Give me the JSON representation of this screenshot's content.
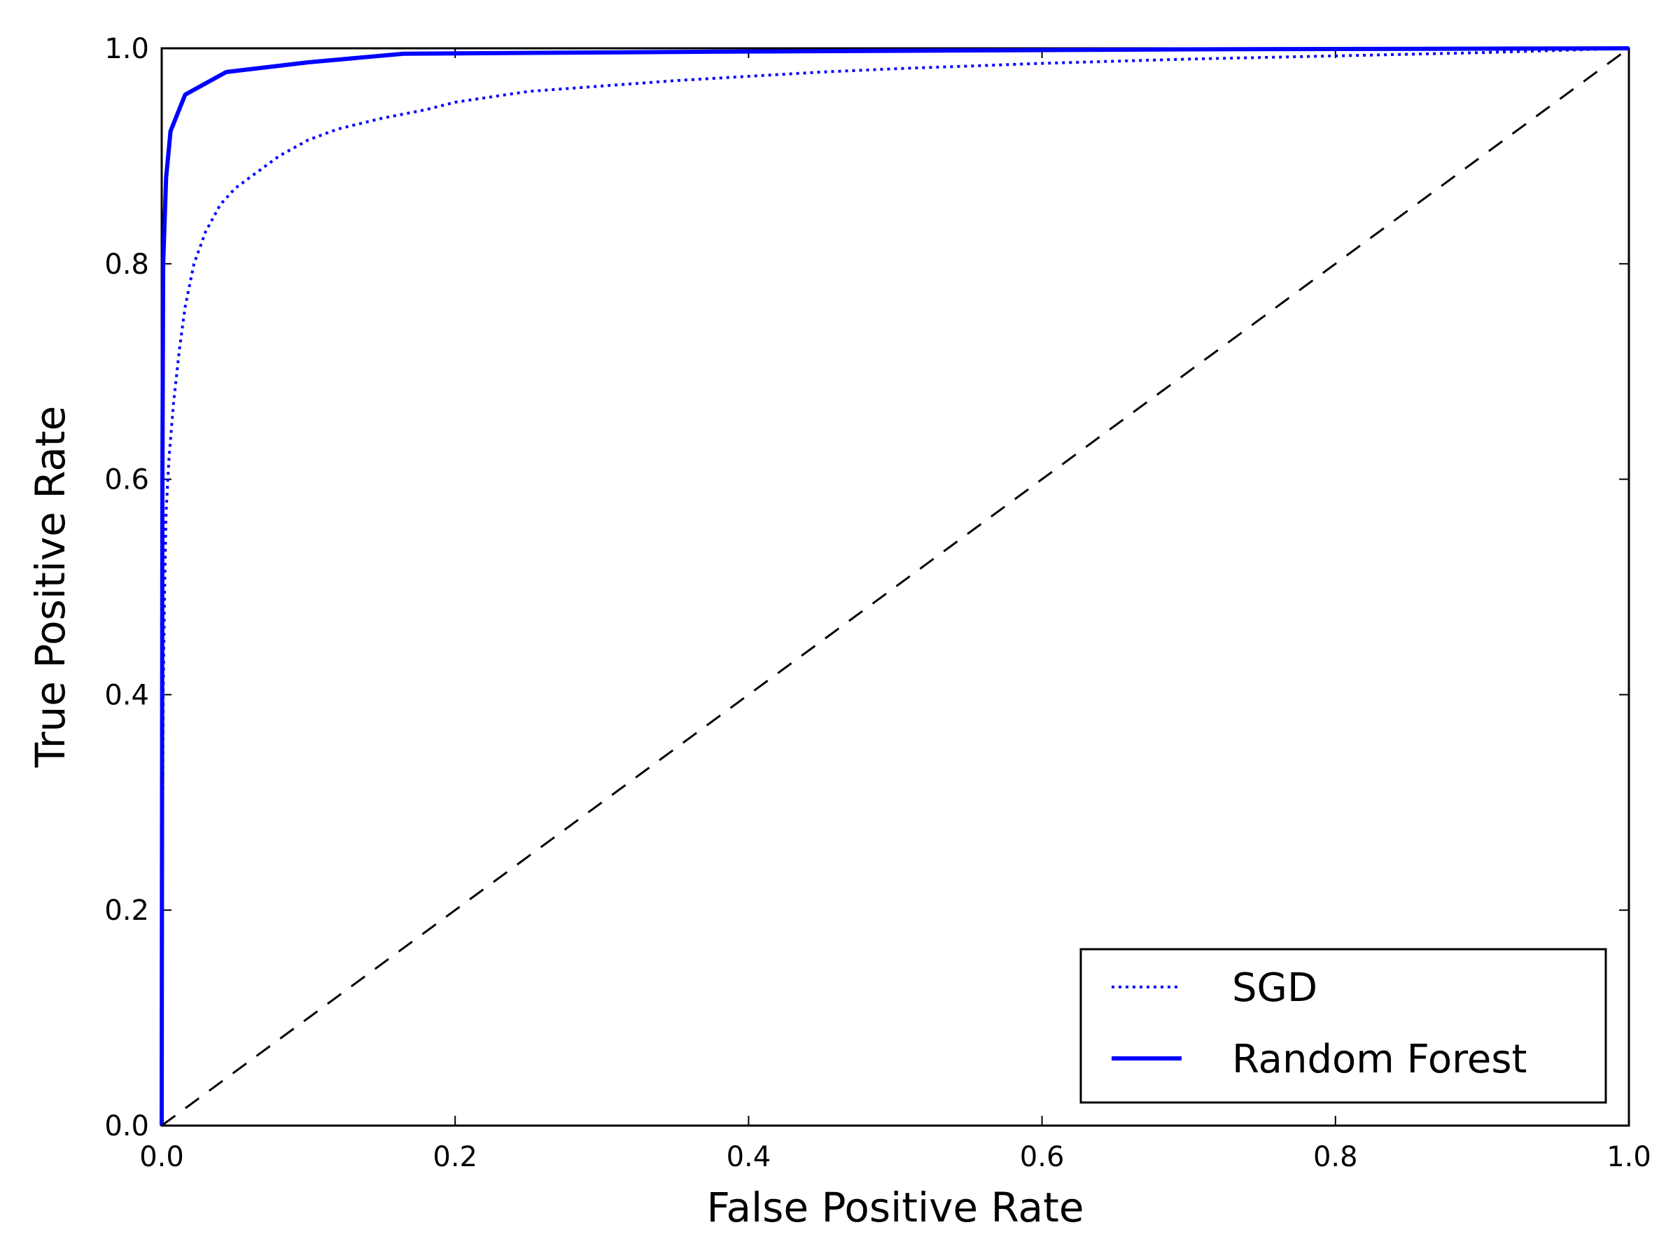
{
  "chart_data": {
    "type": "line",
    "title": "",
    "xlabel": "False Positive Rate",
    "ylabel": "True Positive Rate",
    "xlim": [
      0.0,
      1.0
    ],
    "ylim": [
      0.0,
      1.0
    ],
    "xticks": [
      0.0,
      0.2,
      0.4,
      0.6,
      0.8,
      1.0
    ],
    "yticks": [
      0.0,
      0.2,
      0.4,
      0.6,
      0.8,
      1.0
    ],
    "xtick_labels": [
      "0.0",
      "0.2",
      "0.4",
      "0.6",
      "0.8",
      "1.0"
    ],
    "ytick_labels": [
      "0.0",
      "0.2",
      "0.4",
      "0.6",
      "0.8",
      "1.0"
    ],
    "grid": false,
    "legend_position": "lower-right",
    "series": [
      {
        "name": "SGD",
        "style": "dotted",
        "color": "#0000ff",
        "x": [
          0.0,
          0.0005,
          0.001,
          0.002,
          0.003,
          0.005,
          0.008,
          0.012,
          0.016,
          0.022,
          0.03,
          0.04,
          0.05,
          0.065,
          0.08,
          0.1,
          0.12,
          0.15,
          0.18,
          0.2,
          0.25,
          0.3,
          0.35,
          0.4,
          0.45,
          0.5,
          0.6,
          0.7,
          0.8,
          0.9,
          1.0
        ],
        "y": [
          0.0,
          0.2,
          0.4,
          0.5,
          0.57,
          0.62,
          0.67,
          0.72,
          0.76,
          0.8,
          0.83,
          0.855,
          0.87,
          0.885,
          0.9,
          0.915,
          0.925,
          0.935,
          0.943,
          0.95,
          0.96,
          0.965,
          0.97,
          0.974,
          0.978,
          0.981,
          0.986,
          0.99,
          0.993,
          0.996,
          1.0
        ]
      },
      {
        "name": "Random Forest",
        "style": "solid",
        "color": "#0000ff",
        "x": [
          0.0,
          0.0005,
          0.001,
          0.003,
          0.006,
          0.016,
          0.044,
          0.1,
          0.165,
          0.4,
          0.7,
          1.0
        ],
        "y": [
          0.0,
          0.6,
          0.8,
          0.88,
          0.923,
          0.957,
          0.978,
          0.987,
          0.995,
          0.997,
          0.999,
          1.0
        ]
      },
      {
        "name": "",
        "style": "dashed",
        "color": "#000000",
        "x": [
          0.0,
          1.0
        ],
        "y": [
          0.0,
          1.0
        ]
      }
    ]
  }
}
